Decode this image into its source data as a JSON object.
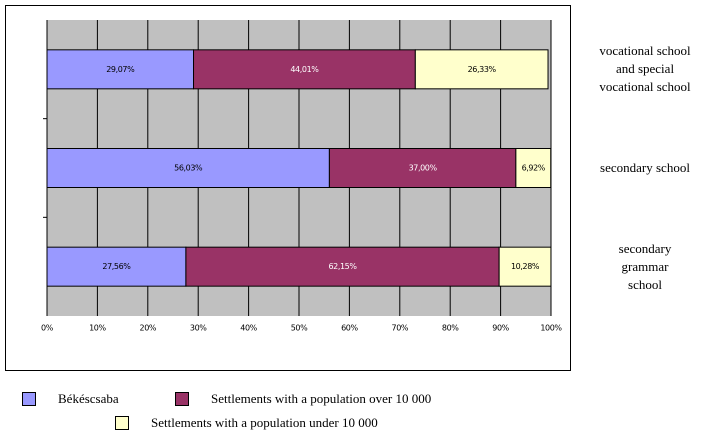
{
  "chart_data": {
    "type": "stacked-bar-horizontal",
    "categories": [
      "vocational school\nand special\nvocational school",
      "secondary school",
      "secondary\ngrammar\nschool"
    ],
    "series": [
      {
        "name": "Békéscsaba",
        "color": "#9999ff",
        "values": [
          29.07,
          56.03,
          27.56
        ],
        "value_labels": [
          "29,07%",
          "56,03%",
          "27,56%"
        ]
      },
      {
        "name": "Settlements with a population over 10 000",
        "color": "#993366",
        "values": [
          44.01,
          37.0,
          62.15
        ],
        "value_labels": [
          "44,01%",
          "37,00%",
          "62,15%"
        ]
      },
      {
        "name": "Settlements with a population under 10 000",
        "color": "#ffffcc",
        "values": [
          26.33,
          6.92,
          10.28
        ],
        "value_labels": [
          "26,33%",
          "6,92%",
          "10,28%"
        ]
      }
    ],
    "xlim": [
      0,
      100
    ],
    "xticks": [
      {
        "value": 0,
        "label": "0%"
      },
      {
        "value": 10,
        "label": "10%"
      },
      {
        "value": 20,
        "label": "20%"
      },
      {
        "value": 30,
        "label": "30%"
      },
      {
        "value": 40,
        "label": "40%"
      },
      {
        "value": 50,
        "label": "50%"
      },
      {
        "value": 60,
        "label": "60%"
      },
      {
        "value": 70,
        "label": "70%"
      },
      {
        "value": 80,
        "label": "80%"
      },
      {
        "value": 90,
        "label": "90%"
      },
      {
        "value": 100,
        "label": "100%"
      }
    ],
    "grid": true,
    "plot_background": "#c0c0c0"
  }
}
